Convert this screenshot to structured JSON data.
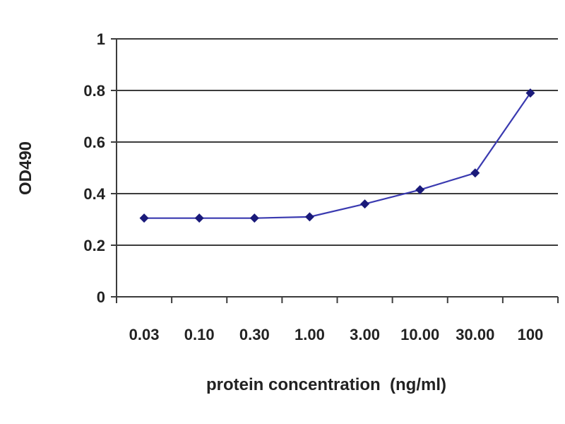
{
  "chart_data": {
    "type": "line",
    "title": "",
    "xlabel": "protein concentration  (ng/ml)",
    "ylabel": "OD490",
    "categories": [
      "0.03",
      "0.10",
      "0.30",
      "1.00",
      "3.00",
      "10.00",
      "30.00",
      "100"
    ],
    "series": [
      {
        "values": [
          0.305,
          0.305,
          0.305,
          0.31,
          0.36,
          0.415,
          0.48,
          0.79
        ],
        "color": "#3a3ab0"
      }
    ],
    "ylim": [
      0,
      1
    ],
    "yticks": [
      0,
      0.2,
      0.4,
      0.6,
      0.8,
      1
    ],
    "ytick_labels": [
      "0",
      "0.2",
      "0.4",
      "0.6",
      "0.8",
      "1"
    ],
    "grid": true,
    "legend": "none",
    "marker": "diamond",
    "marker_color": "#1a1a7a"
  }
}
